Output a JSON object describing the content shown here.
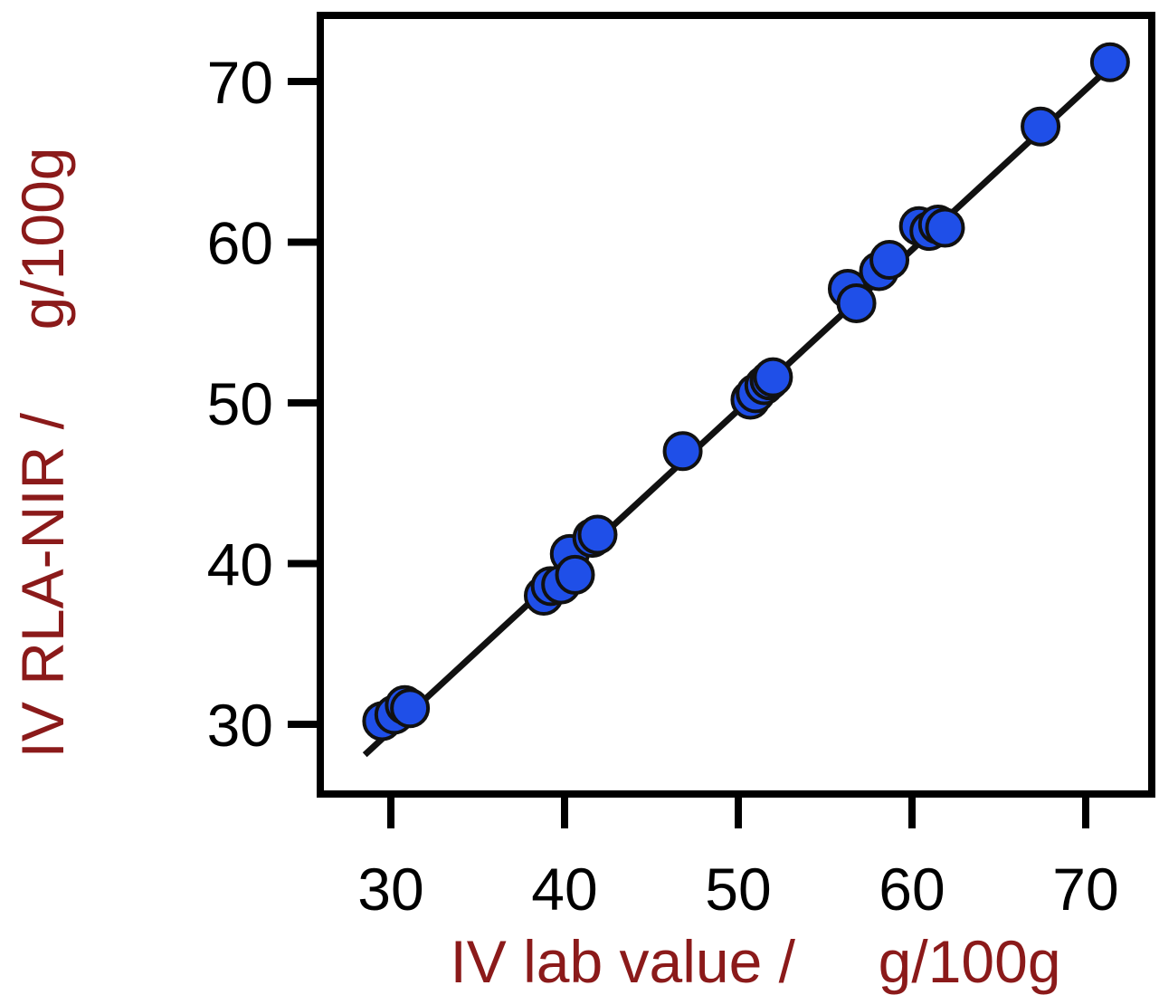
{
  "chart_data": {
    "type": "scatter",
    "title": "",
    "xlabel": "IV lab value /     g/100g",
    "ylabel": "IV RLA-NIR /     g/100g",
    "xlim": [
      25.5,
      72.5
    ],
    "ylim": [
      25.5,
      74.5
    ],
    "x_ticks": [
      "30",
      "40",
      "50",
      "60",
      "70"
    ],
    "y_ticks": [
      "30",
      "40",
      "50",
      "60",
      "70"
    ],
    "grid": false,
    "legend": "none",
    "colors": {
      "marker": "#1f4fe8",
      "marker_edge": "#111111",
      "fit_line": "#111111",
      "axis_title": "#8b1a1a"
    },
    "points": [
      {
        "x": 29.5,
        "y": 30.2
      },
      {
        "x": 30.2,
        "y": 30.6
      },
      {
        "x": 30.8,
        "y": 31.2
      },
      {
        "x": 31.1,
        "y": 31.0
      },
      {
        "x": 38.8,
        "y": 38.0
      },
      {
        "x": 39.2,
        "y": 38.6
      },
      {
        "x": 39.8,
        "y": 38.7
      },
      {
        "x": 40.3,
        "y": 40.6
      },
      {
        "x": 40.6,
        "y": 39.3
      },
      {
        "x": 41.6,
        "y": 41.6
      },
      {
        "x": 41.9,
        "y": 41.8
      },
      {
        "x": 46.8,
        "y": 47.0
      },
      {
        "x": 50.7,
        "y": 50.2
      },
      {
        "x": 51.0,
        "y": 50.6
      },
      {
        "x": 51.5,
        "y": 51.1
      },
      {
        "x": 51.8,
        "y": 51.4
      },
      {
        "x": 52.0,
        "y": 51.6
      },
      {
        "x": 56.3,
        "y": 57.1
      },
      {
        "x": 56.8,
        "y": 56.2
      },
      {
        "x": 58.1,
        "y": 58.2
      },
      {
        "x": 58.7,
        "y": 58.9
      },
      {
        "x": 60.4,
        "y": 61.0
      },
      {
        "x": 61.0,
        "y": 60.7
      },
      {
        "x": 61.5,
        "y": 61.1
      },
      {
        "x": 61.9,
        "y": 60.9
      },
      {
        "x": 67.4,
        "y": 67.2
      },
      {
        "x": 71.4,
        "y": 71.2
      }
    ],
    "fit_line": {
      "x": [
        28.5,
        71.5
      ],
      "y": [
        28.1,
        71.0
      ]
    }
  }
}
